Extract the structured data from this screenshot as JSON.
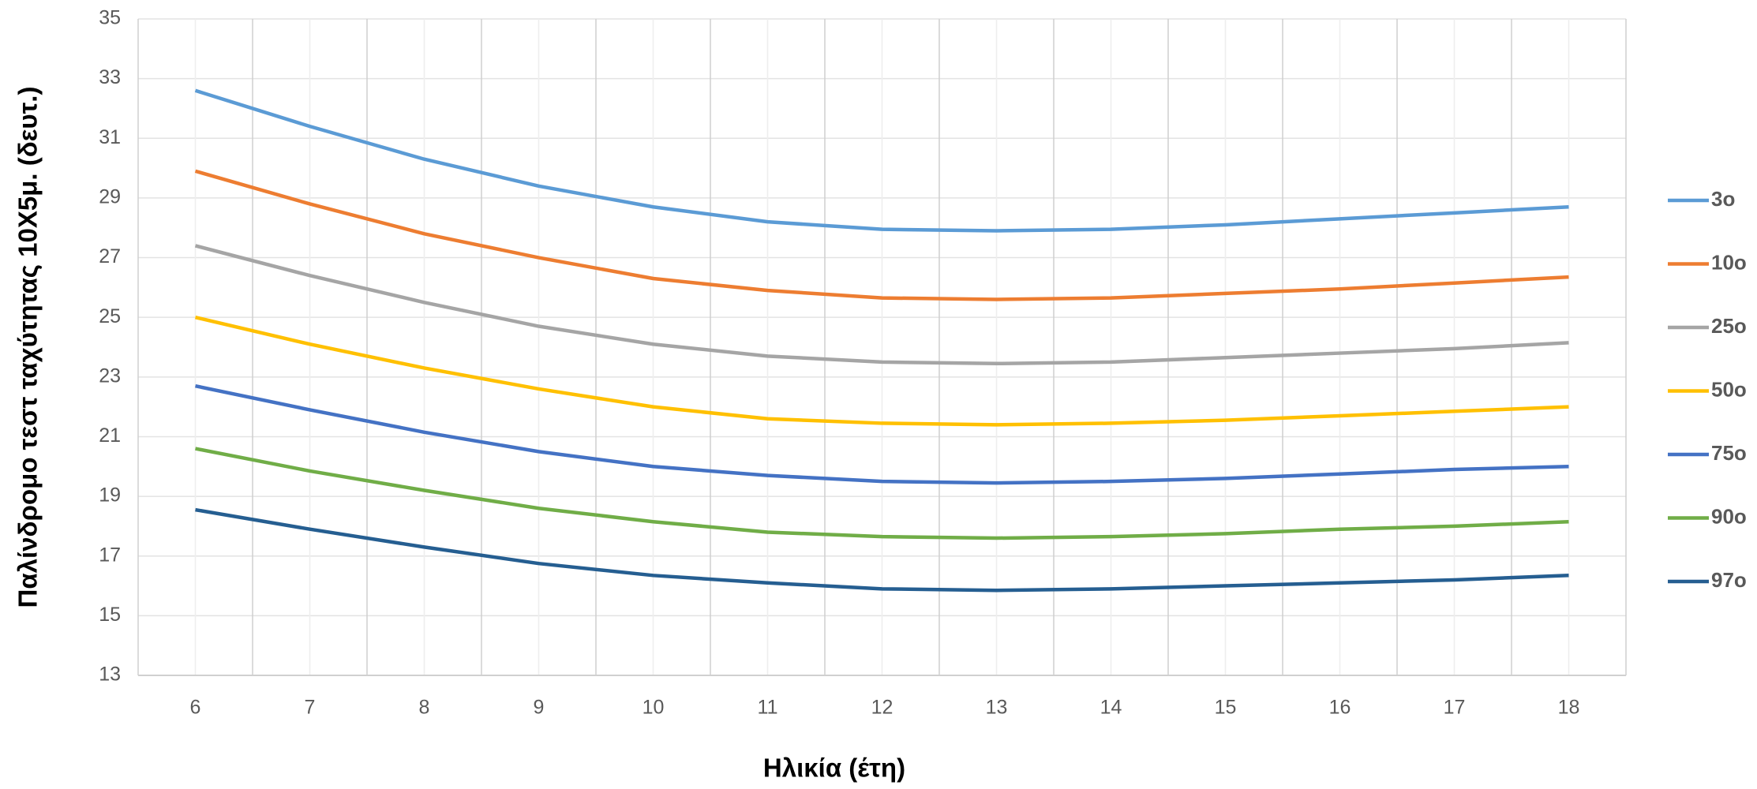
{
  "chart_data": {
    "type": "line",
    "y_label": "Παλίνδρομο τεστ ταχύτητας 10Χ5μ. (δευτ.)",
    "x_label": "Ηλικία (έτη)",
    "categories": [
      "6",
      "7",
      "8",
      "9",
      "10",
      "11",
      "12",
      "13",
      "14",
      "15",
      "16",
      "17",
      "18"
    ],
    "ylim": [
      13,
      35
    ],
    "yticks": [
      13,
      15,
      17,
      19,
      21,
      23,
      25,
      27,
      29,
      31,
      33,
      35
    ],
    "grid": true,
    "series": [
      {
        "name": "3ο",
        "color": "#5b9bd5",
        "values": [
          32.6,
          31.4,
          30.3,
          29.4,
          28.7,
          28.2,
          27.95,
          27.9,
          27.95,
          28.1,
          28.3,
          28.5,
          28.7
        ]
      },
      {
        "name": "10ο",
        "color": "#ed7d31",
        "values": [
          29.9,
          28.8,
          27.8,
          27.0,
          26.3,
          25.9,
          25.65,
          25.6,
          25.65,
          25.8,
          25.95,
          26.15,
          26.35
        ]
      },
      {
        "name": "25ο",
        "color": "#a5a5a5",
        "values": [
          27.4,
          26.4,
          25.5,
          24.7,
          24.1,
          23.7,
          23.5,
          23.45,
          23.5,
          23.65,
          23.8,
          23.95,
          24.15
        ]
      },
      {
        "name": "50ο",
        "color": "#ffc000",
        "values": [
          25.0,
          24.1,
          23.3,
          22.6,
          22.0,
          21.6,
          21.45,
          21.4,
          21.45,
          21.55,
          21.7,
          21.85,
          22.0
        ]
      },
      {
        "name": "75ο",
        "color": "#4472c4",
        "values": [
          22.7,
          21.9,
          21.15,
          20.5,
          20.0,
          19.7,
          19.5,
          19.45,
          19.5,
          19.6,
          19.75,
          19.9,
          20.0
        ]
      },
      {
        "name": "90ο",
        "color": "#70ad47",
        "values": [
          20.6,
          19.85,
          19.2,
          18.6,
          18.15,
          17.8,
          17.65,
          17.6,
          17.65,
          17.75,
          17.9,
          18.0,
          18.15
        ]
      },
      {
        "name": "97ο",
        "color": "#255e91",
        "values": [
          18.55,
          17.9,
          17.3,
          16.75,
          16.35,
          16.1,
          15.9,
          15.85,
          15.9,
          16.0,
          16.1,
          16.2,
          16.35
        ]
      }
    ]
  }
}
